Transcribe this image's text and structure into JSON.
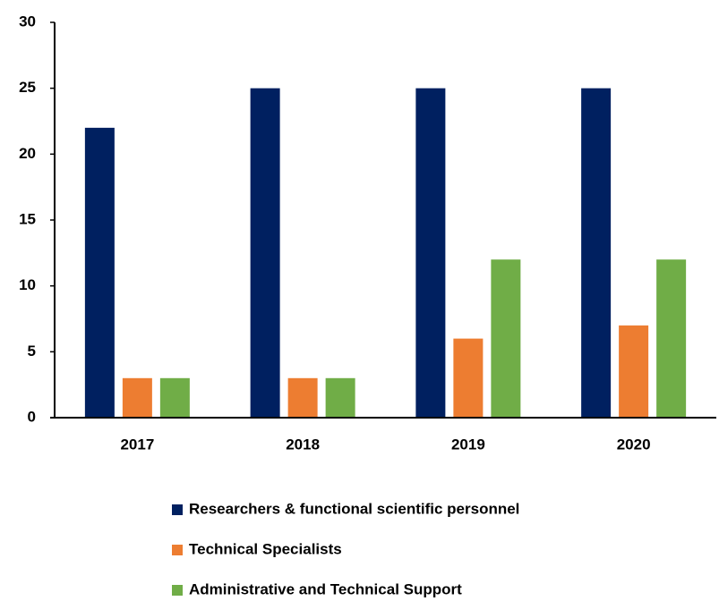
{
  "chart_data": {
    "type": "bar",
    "categories": [
      "2017",
      "2018",
      "2019",
      "2020"
    ],
    "series": [
      {
        "name": "Researchers & functional scientific personnel",
        "color": "#002060",
        "values": [
          22,
          25,
          25,
          25
        ]
      },
      {
        "name": "Technical Specialists",
        "color": "#ED7D31",
        "values": [
          3,
          3,
          6,
          7
        ]
      },
      {
        "name": "Administrative and Technical Support",
        "color": "#70AD47",
        "values": [
          3,
          3,
          12,
          12
        ]
      }
    ],
    "ylim": [
      0,
      30
    ],
    "yticks": [
      0,
      5,
      10,
      15,
      20,
      25,
      30
    ],
    "grid": false,
    "legend": "bottom"
  }
}
